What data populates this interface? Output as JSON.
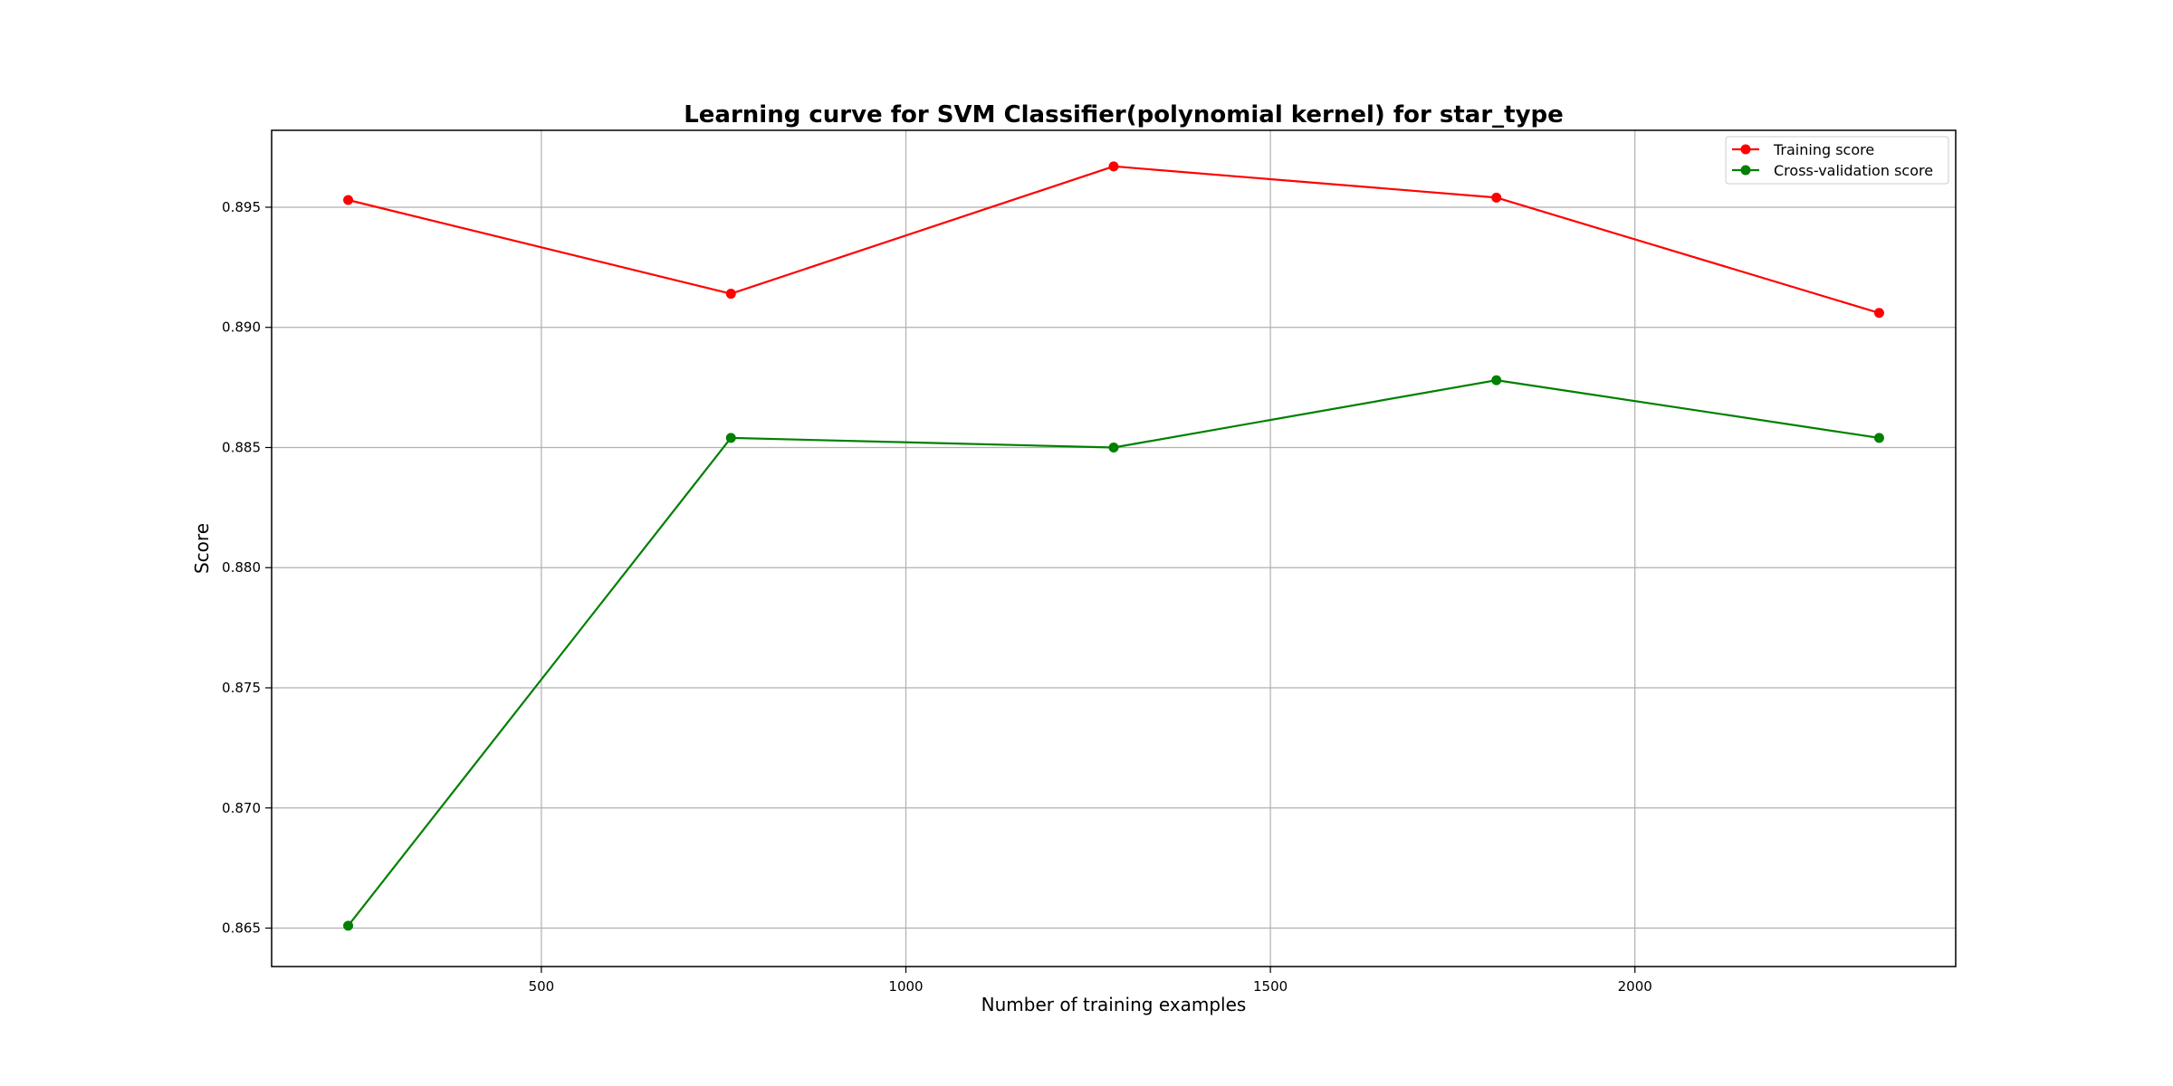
{
  "chart_data": {
    "type": "line",
    "title": "Learning curve for SVM Classifier(polynomial kernel) for star_type",
    "xlabel": "Number of training examples",
    "ylabel": "Score",
    "x": [
      235,
      760,
      1285,
      1810,
      2335
    ],
    "xlim": [
      130,
      2440
    ],
    "ylim": [
      0.8634,
      0.8982
    ],
    "xticks": [
      500,
      1000,
      1500,
      2000
    ],
    "xtick_labels": [
      "500",
      "1000",
      "1500",
      "2000"
    ],
    "yticks": [
      0.865,
      0.87,
      0.875,
      0.88,
      0.885,
      0.89,
      0.895
    ],
    "ytick_labels": [
      "0.865",
      "0.870",
      "0.875",
      "0.880",
      "0.885",
      "0.890",
      "0.895"
    ],
    "grid": true,
    "legend_position": "top-right",
    "series": [
      {
        "name": "Training score",
        "color": "#ff0000",
        "values": [
          0.8953,
          0.8914,
          0.8967,
          0.8954,
          0.8906
        ]
      },
      {
        "name": "Cross-validation score",
        "color": "#008000",
        "values": [
          0.8651,
          0.8854,
          0.885,
          0.8878,
          0.8854
        ]
      }
    ]
  }
}
